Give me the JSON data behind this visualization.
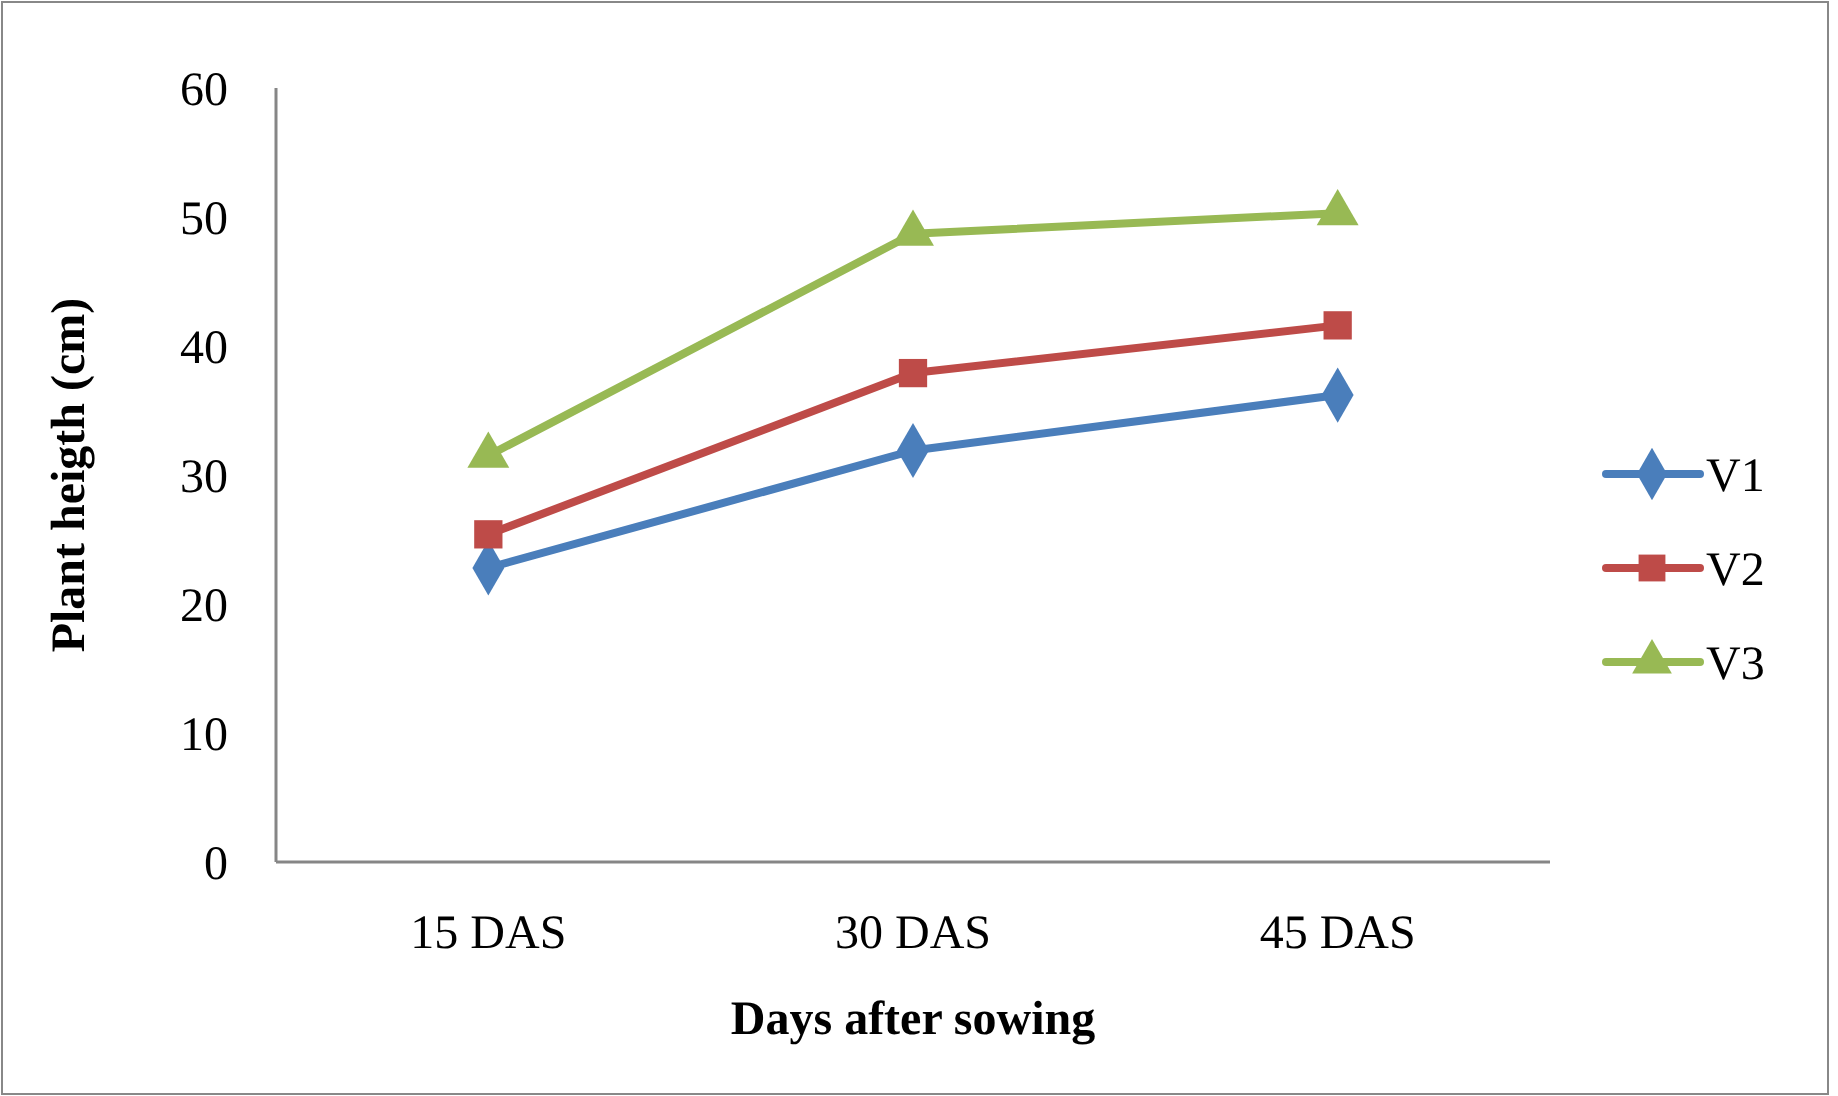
{
  "chart_data": {
    "type": "line",
    "xlabel": "Days after sowing",
    "ylabel": "Plant heigth (cm)",
    "categories": [
      "15 DAS",
      "30 DAS",
      "45 DAS"
    ],
    "series": [
      {
        "name": "V1",
        "color": "#4a7ebb",
        "marker": "diamond",
        "values": [
          22.8,
          31.9,
          36.2
        ]
      },
      {
        "name": "V2",
        "color": "#be4b48",
        "marker": "square",
        "values": [
          25.4,
          37.9,
          41.6
        ]
      },
      {
        "name": "V3",
        "color": "#98b954",
        "marker": "triangle",
        "values": [
          31.5,
          48.7,
          50.3
        ]
      }
    ],
    "ylim": [
      0,
      60
    ],
    "yticks": [
      0,
      10,
      20,
      30,
      40,
      50,
      60
    ],
    "grid": false,
    "legend": "right",
    "line_style": "solid"
  }
}
